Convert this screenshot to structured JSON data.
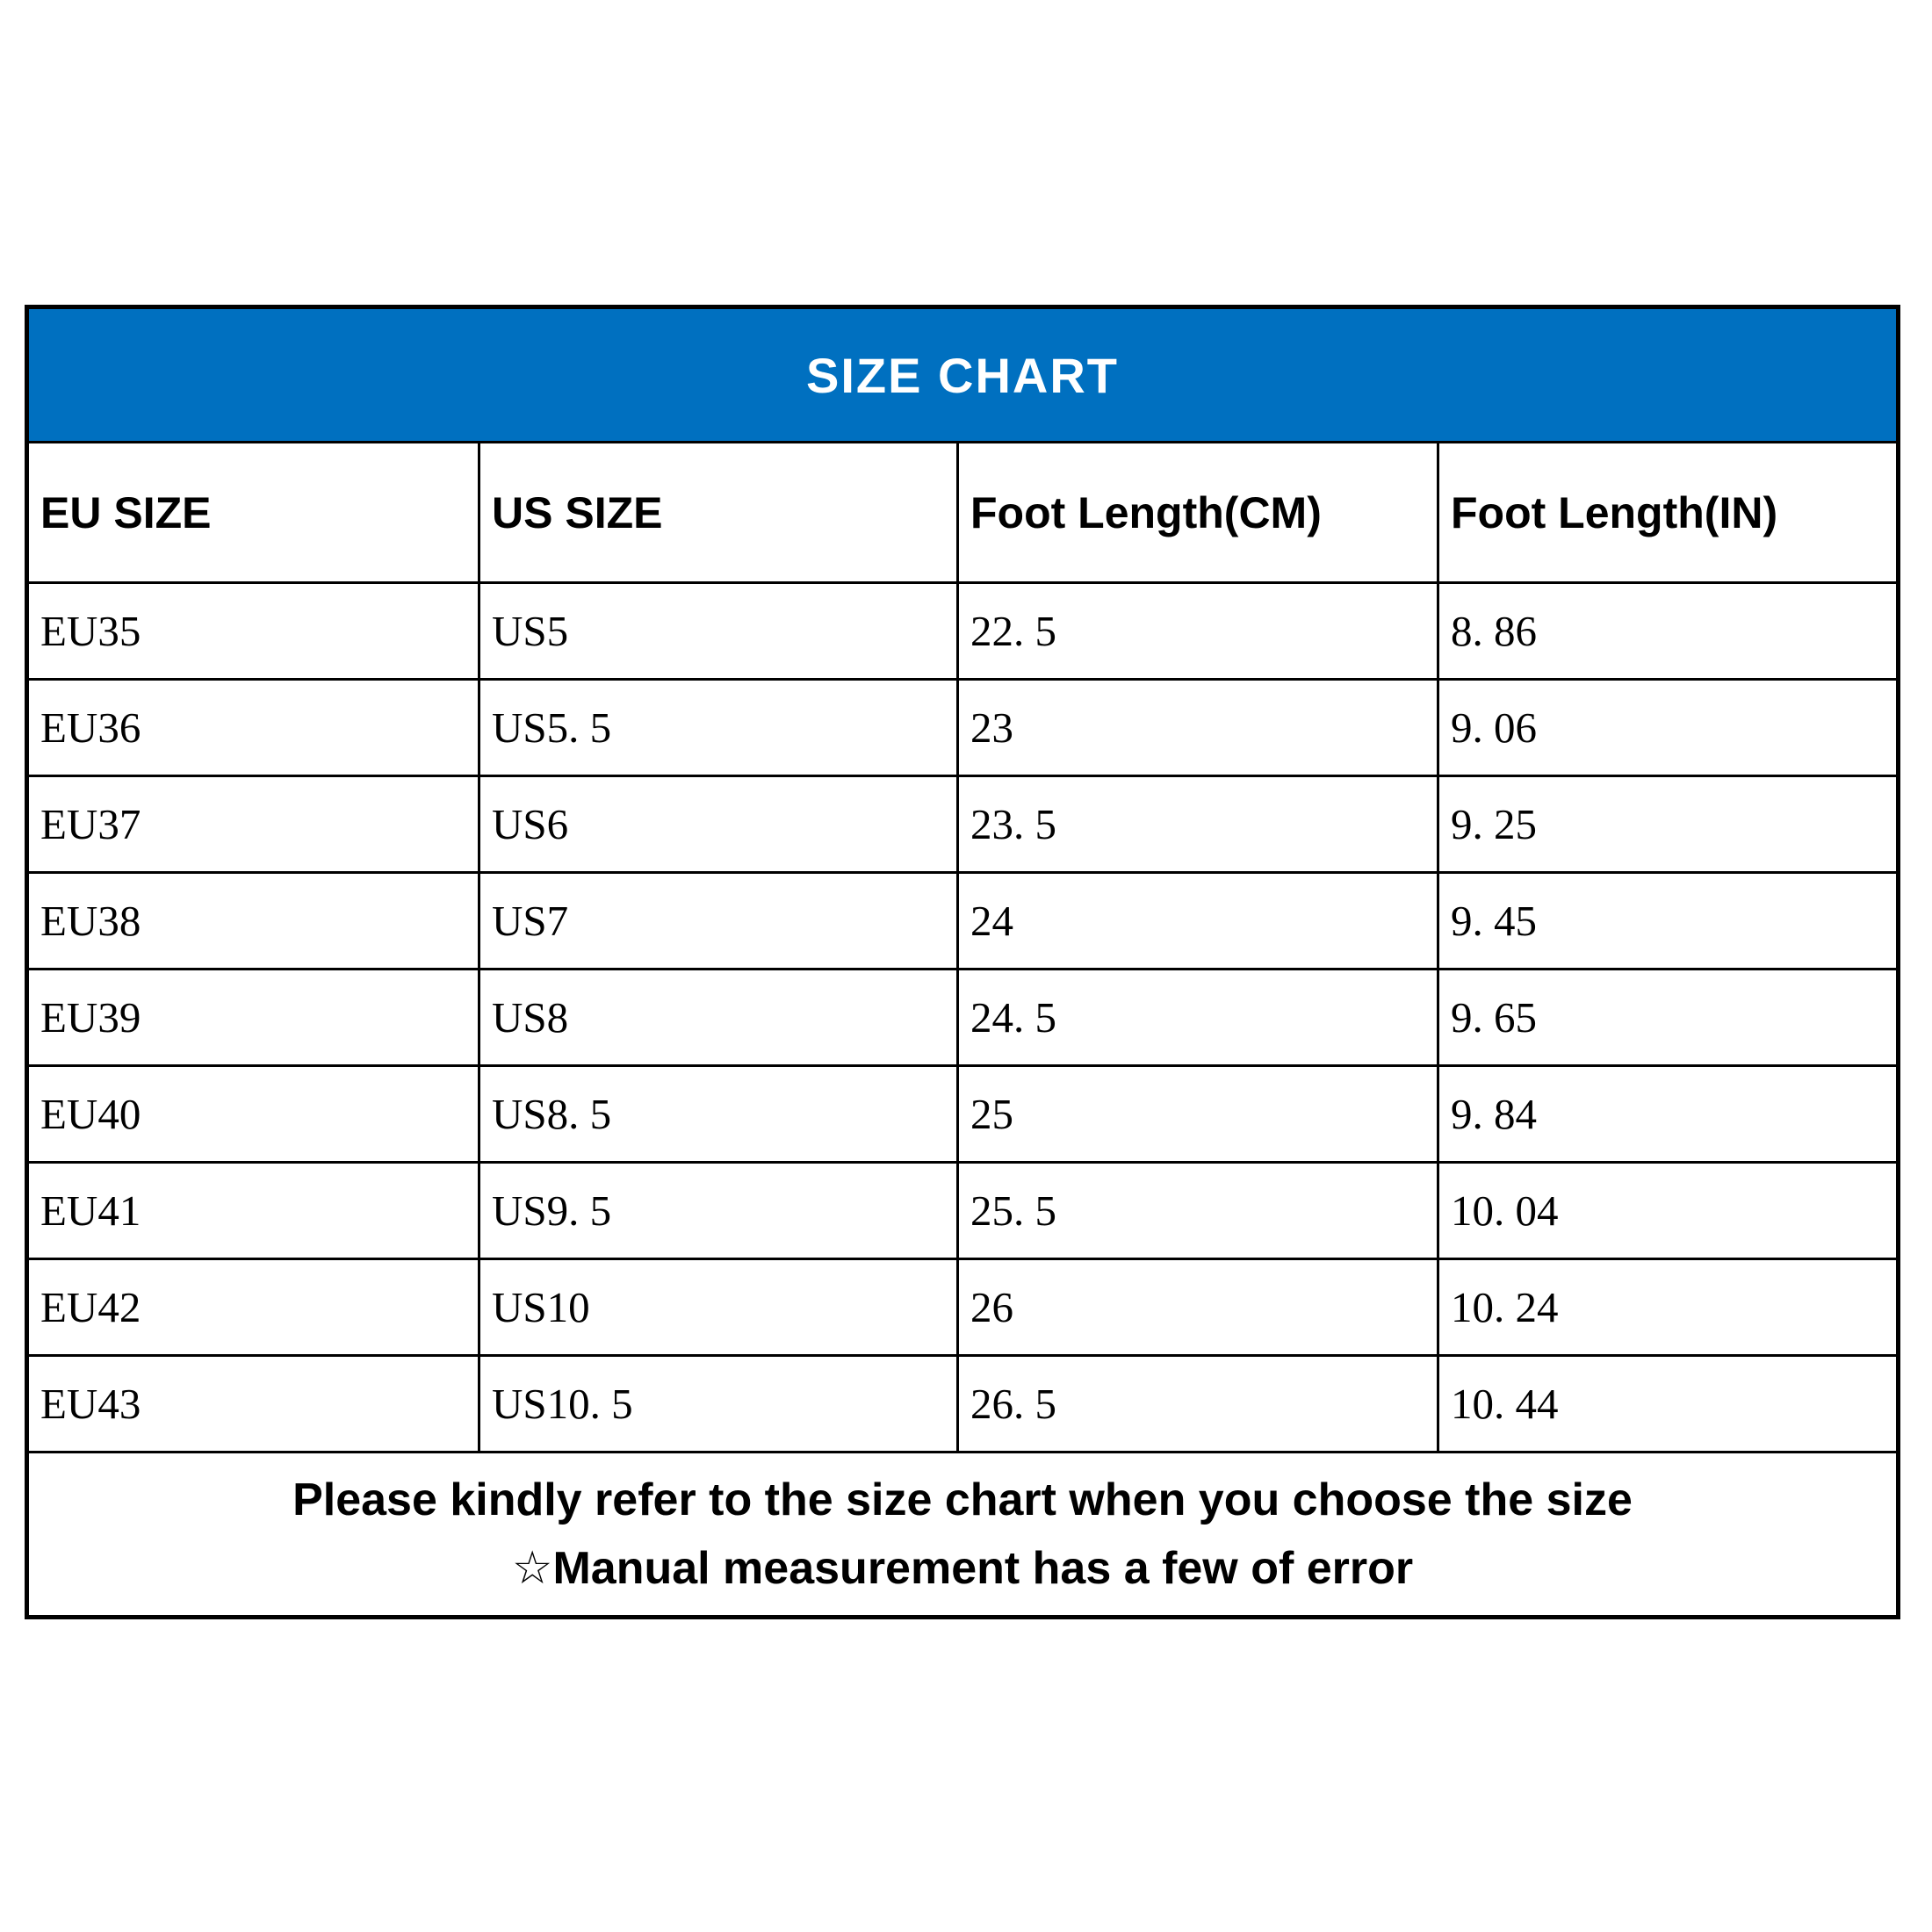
{
  "title": "SIZE CHART",
  "colors": {
    "header_bg": "#0070C0",
    "header_text": "#ffffff",
    "border": "#000000",
    "body_text": "#000000",
    "background": "#ffffff"
  },
  "table": {
    "columns": [
      "EU SIZE",
      "US SIZE",
      "Foot Length(CM)",
      "Foot Length(IN)"
    ],
    "rows": [
      [
        "EU35",
        "US5",
        "22. 5",
        "8. 86"
      ],
      [
        "EU36",
        "US5. 5",
        "23",
        "9. 06"
      ],
      [
        "EU37",
        "US6",
        "23. 5",
        "9. 25"
      ],
      [
        "EU38",
        "US7",
        "24",
        "9. 45"
      ],
      [
        "EU39",
        "US8",
        "24. 5",
        "9. 65"
      ],
      [
        "EU40",
        "US8. 5",
        "25",
        "9. 84"
      ],
      [
        "EU41",
        "US9. 5",
        "25. 5",
        "10. 04"
      ],
      [
        "EU42",
        "US10",
        "26",
        "10. 24"
      ],
      [
        "EU43",
        "US10. 5",
        "26. 5",
        "10. 44"
      ]
    ]
  },
  "footer": {
    "lines": [
      "Please kindly refer to the size chart when you choose the size",
      "☆Manual measurement has a few of error"
    ]
  }
}
